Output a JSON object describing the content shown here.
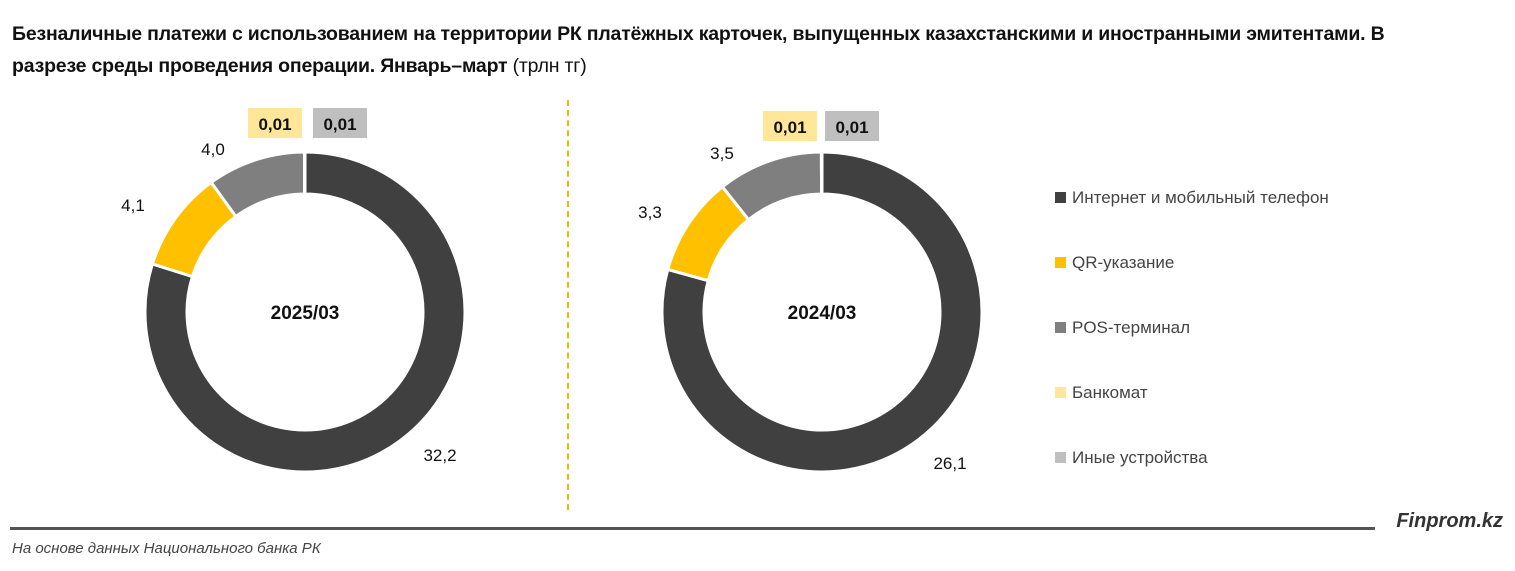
{
  "title": "Безналичные платежи с использованием на территории РК платёжных карточек, выпущенных казахстанскими и иностранными эмитентами. В разрезе среды проведения операции. Январь–март",
  "unit": "(трлн тг)",
  "brand": "Finprom.kz",
  "source": "На основе данных Национального банка РК",
  "chart_data": [
    {
      "type": "pie",
      "variant": "doughnut",
      "center_label": "2025/03",
      "categories": [
        "Интернет и мобильный телефон",
        "QR-указание",
        "POS-терминал",
        "Банкомат",
        "Иные устройства"
      ],
      "values": [
        32.2,
        4.1,
        4.0,
        0.01,
        0.01
      ],
      "labels": [
        "32,2",
        "4,1",
        "4,0",
        "0,01",
        "0,01"
      ]
    },
    {
      "type": "pie",
      "variant": "doughnut",
      "center_label": "2024/03",
      "categories": [
        "Интернет и мобильный телефон",
        "QR-указание",
        "POS-терминал",
        "Банкомат",
        "Иные устройства"
      ],
      "values": [
        26.1,
        3.3,
        3.5,
        0.01,
        0.01
      ],
      "labels": [
        "26,1",
        "3,3",
        "3,5",
        "0,01",
        "0,01"
      ]
    }
  ],
  "legend": {
    "placement": "right",
    "items": [
      {
        "label": "Интернет и мобильный телефон",
        "color": "#404040"
      },
      {
        "label": "QR-указание",
        "color": "#FFC000"
      },
      {
        "label": "POS-терминал",
        "color": "#7F7F7F"
      },
      {
        "label": "Банкомат",
        "color": "#FFE699"
      },
      {
        "label": "Иные устройства",
        "color": "#BFBFBF"
      }
    ]
  }
}
